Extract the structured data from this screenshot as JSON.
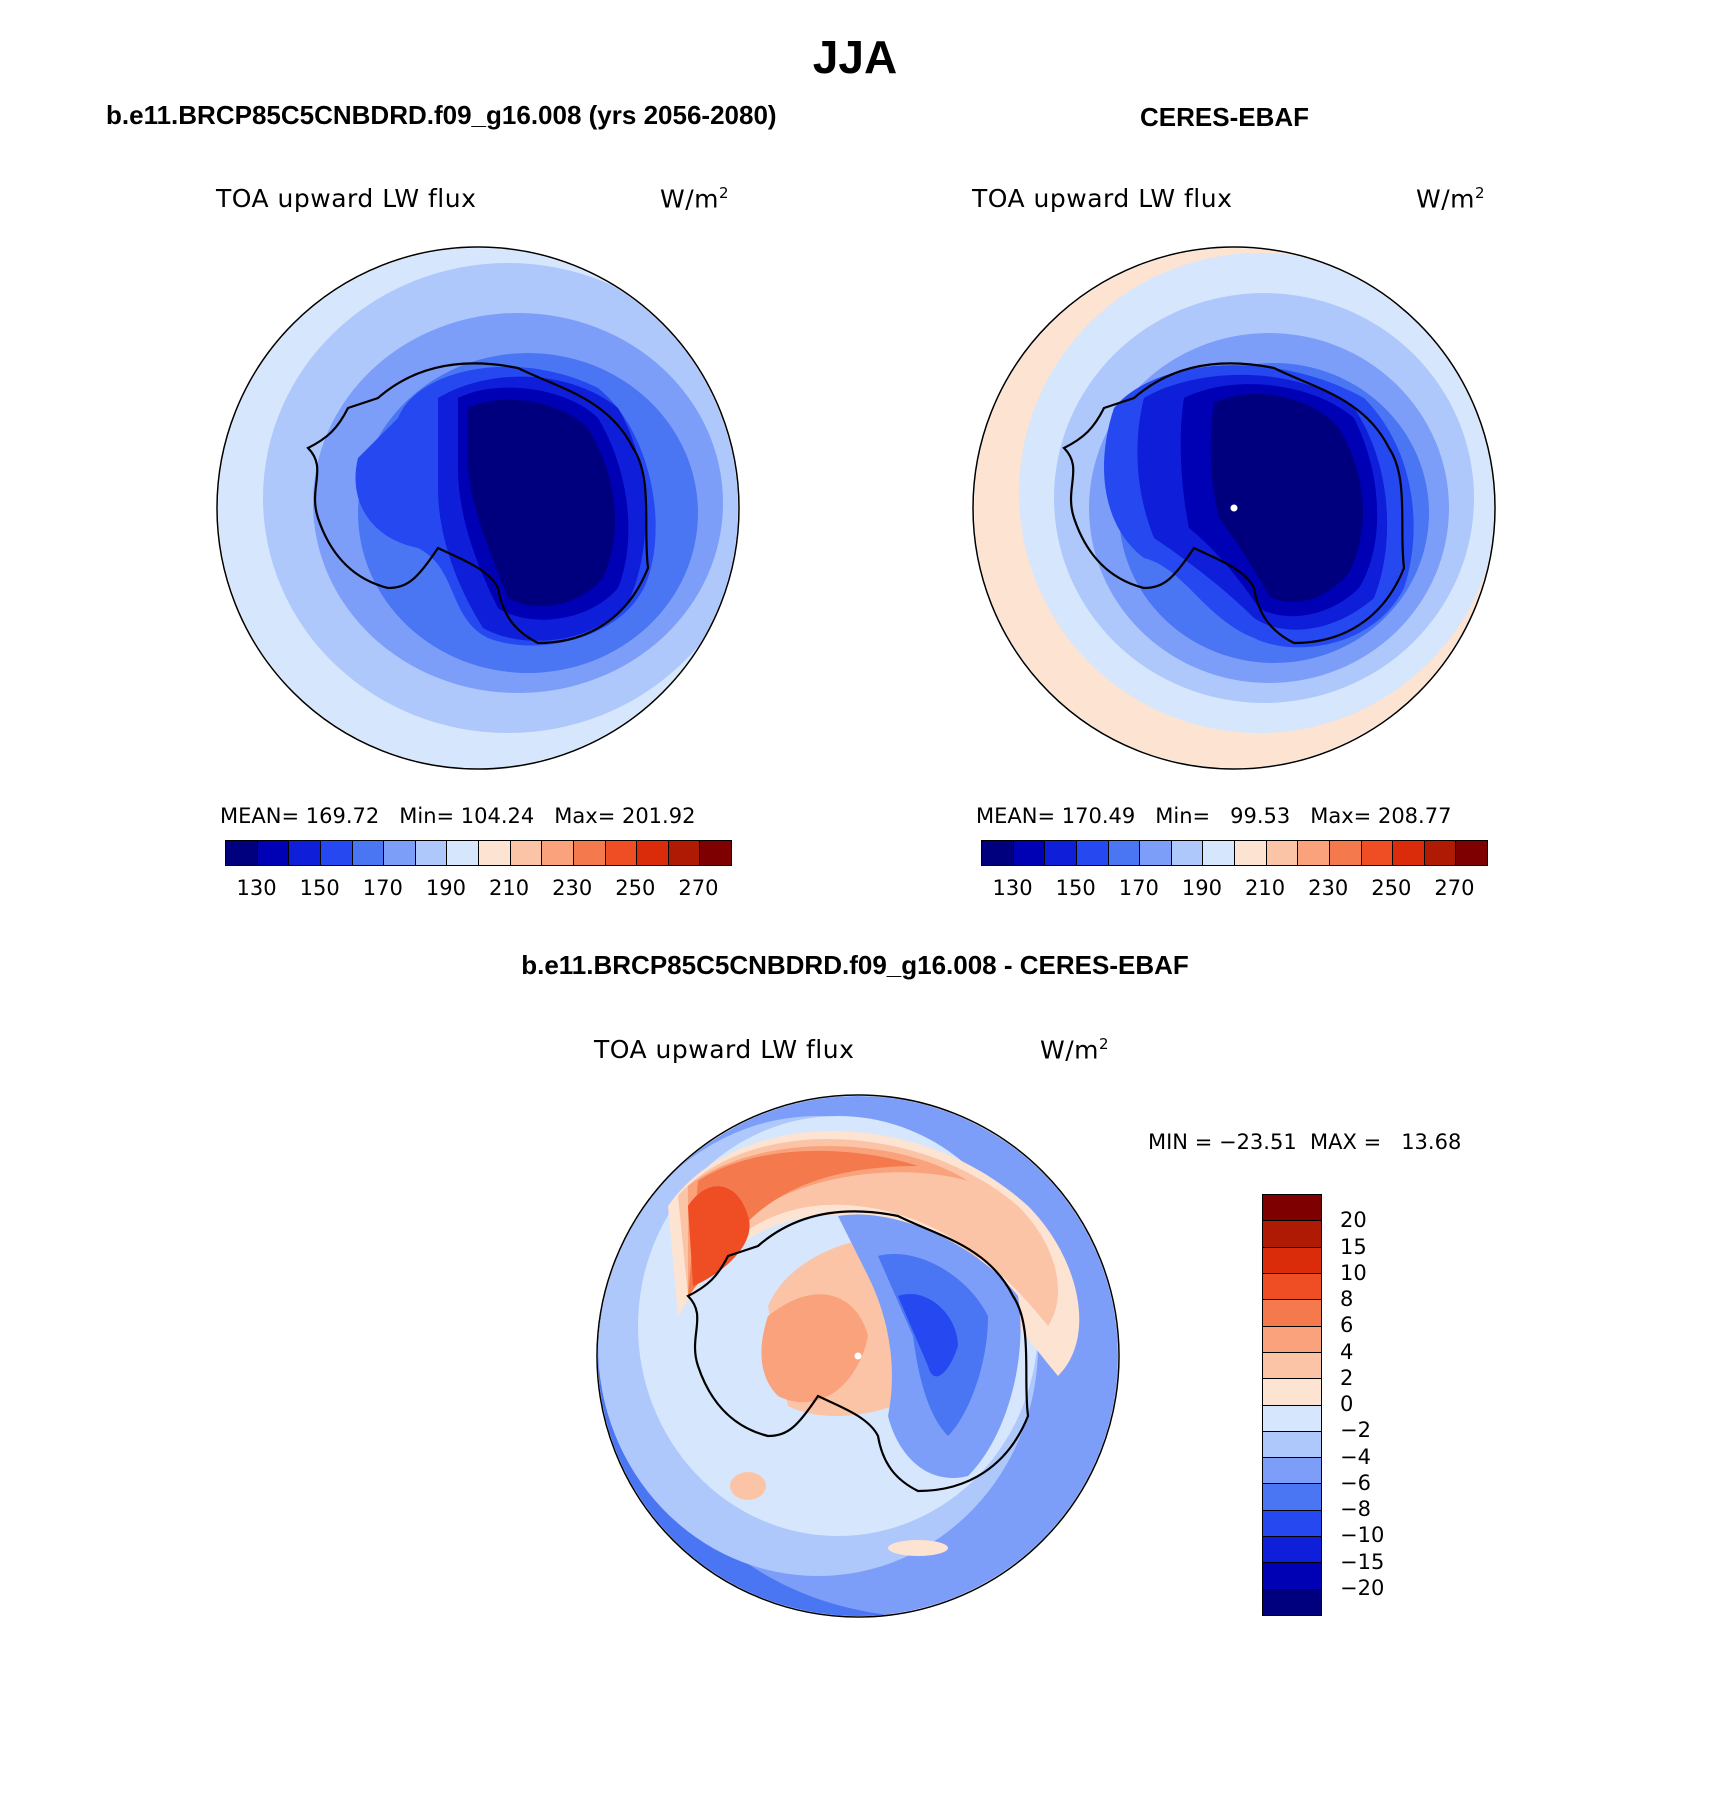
{
  "figure": {
    "title": "JJA",
    "units_prefix": "W/m",
    "units_exp": "2"
  },
  "colors": {
    "abs_scale": [
      "#00007f",
      "#0000b5",
      "#0f1ed8",
      "#2548f0",
      "#4a76f4",
      "#7d9ef8",
      "#aec8fb",
      "#d6e6fd",
      "#fde3d1",
      "#fcc4a6",
      "#f9a27c",
      "#f47a4e",
      "#ef4e24",
      "#da2c0a",
      "#ae1a04",
      "#7f0000"
    ],
    "diff_scale_top_to_bottom": [
      "#7f0000",
      "#ae1a04",
      "#da2c0a",
      "#ef4e24",
      "#f47a4e",
      "#f9a27c",
      "#fcc4a6",
      "#fde3d1",
      "#d6e6fd",
      "#aec8fb",
      "#7d9ef8",
      "#4a76f4",
      "#2548f0",
      "#0f1ed8",
      "#0000b5",
      "#00007f"
    ],
    "coastline": "#000000"
  },
  "panels": {
    "model": {
      "title": "b.e11.BRCP85C5CNBDRD.f09_g16.008 (yrs 2056-2080)",
      "variable": "TOA upward LW flux",
      "stats": "MEAN= 169.72   Min= 104.24   Max= 201.92",
      "ticks": [
        "130",
        "150",
        "170",
        "190",
        "210",
        "230",
        "250",
        "270"
      ]
    },
    "obs": {
      "title": "CERES-EBAF",
      "variable": "TOA upward LW flux",
      "stats": "MEAN= 170.49   Min=   99.53   Max= 208.77",
      "ticks": [
        "130",
        "150",
        "170",
        "190",
        "210",
        "230",
        "250",
        "270"
      ]
    },
    "diff": {
      "title": "b.e11.BRCP85C5CNBDRD.f09_g16.008 - CERES-EBAF",
      "variable": "TOA upward LW flux",
      "stats": "MIN = −23.51  MAX =   13.68",
      "ticks": [
        "20",
        "15",
        "10",
        "8",
        "6",
        "4",
        "2",
        "0",
        "−2",
        "−4",
        "−6",
        "−8",
        "−10",
        "−15",
        "−20"
      ]
    }
  }
}
